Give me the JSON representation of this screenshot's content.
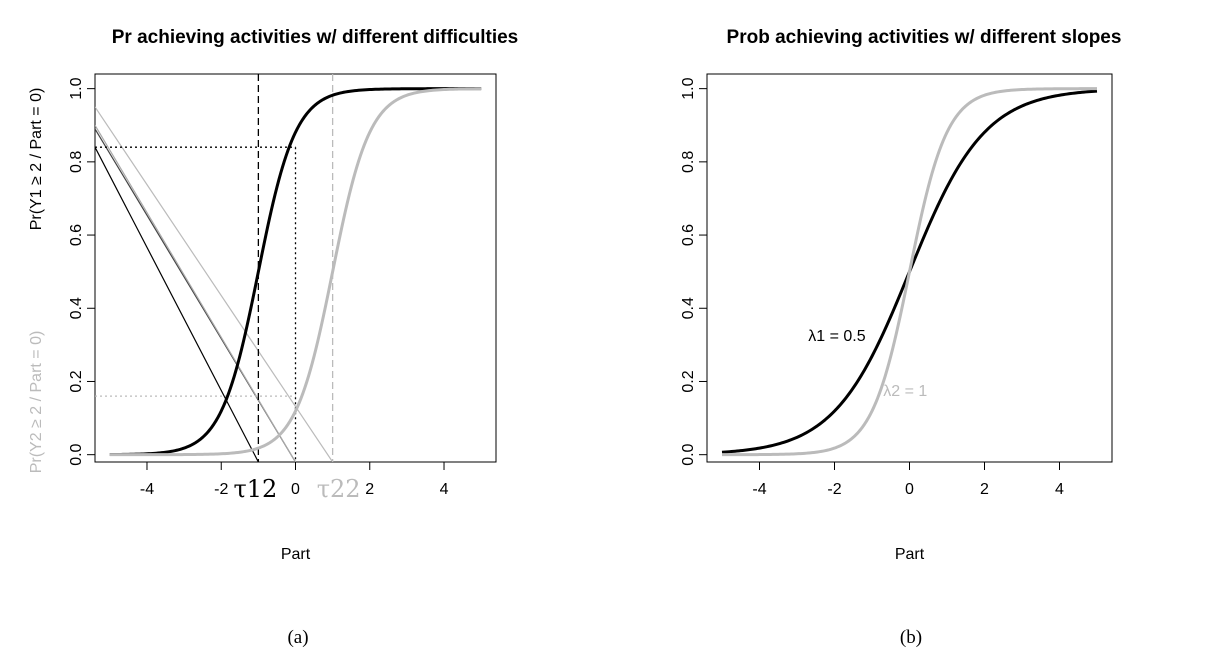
{
  "chart_data": [
    {
      "type": "line",
      "title": "Pr achieving activities w/ different difficulties",
      "xlabel": "Part",
      "ylabel_primary": "Pr(Y1 ≥ 2 / Part = 0)",
      "ylabel_secondary": "Pr(Y2 ≥ 2 / Part = 0)",
      "caption": "(a)",
      "xlim": [
        -5.4,
        5.4
      ],
      "ylim": [
        -0.02,
        1.04
      ],
      "xticks": [
        "-4",
        "-2",
        "0",
        "2",
        "4"
      ],
      "yticks": [
        "0.0",
        "0.2",
        "0.4",
        "0.6",
        "0.8",
        "1.0"
      ],
      "series": [
        {
          "color": "#000000",
          "function": "logistic",
          "slope": 2.0,
          "location": -1.0,
          "x_range": [
            -5,
            5
          ]
        },
        {
          "color": "#bbbbbb",
          "function": "logistic",
          "slope": 2.0,
          "location": 1.0,
          "x_range": [
            -5,
            5
          ]
        }
      ],
      "annotations": [
        {
          "text": "τ12",
          "x": -1.0,
          "color": "#000000"
        },
        {
          "text": "τ22",
          "x": 1.0,
          "color": "#bbbbbb"
        }
      ],
      "reference_lines": [
        {
          "kind": "vline",
          "x": -1.0,
          "style": "dashed",
          "color": "#000000"
        },
        {
          "kind": "vline",
          "x": 1.0,
          "style": "dashed",
          "color": "#bbbbbb"
        },
        {
          "kind": "vline",
          "x": 0.0,
          "style": "dotted",
          "color": "#000000",
          "to_y": 0.84
        },
        {
          "kind": "hline",
          "y": 0.84,
          "style": "dotted",
          "color": "#000000"
        },
        {
          "kind": "hline",
          "y": 0.16,
          "style": "dotted",
          "color": "#bbbbbb"
        }
      ],
      "guide_lines": [
        {
          "from": [
            -5.4,
            0.84
          ],
          "to": [
            -1.0,
            -0.02
          ],
          "color": "#000000"
        },
        {
          "from": [
            -5.4,
            0.89
          ],
          "to": [
            0.0,
            -0.02
          ],
          "color": "#444444"
        },
        {
          "from": [
            -5.4,
            0.9
          ],
          "to": [
            0.0,
            -0.02
          ],
          "color": "#aaaaaa"
        },
        {
          "from": [
            -5.4,
            0.95
          ],
          "to": [
            1.0,
            -0.02
          ],
          "color": "#bbbbbb"
        }
      ]
    },
    {
      "type": "line",
      "title": "Prob achieving activities w/ different slopes",
      "xlabel": "Part",
      "caption": "(b)",
      "xlim": [
        -5.4,
        5.4
      ],
      "ylim": [
        -0.02,
        1.04
      ],
      "xticks": [
        "-4",
        "-2",
        "0",
        "2",
        "4"
      ],
      "yticks": [
        "0.0",
        "0.2",
        "0.4",
        "0.6",
        "0.8",
        "1.0"
      ],
      "series": [
        {
          "color": "#000000",
          "function": "logistic",
          "slope": 1.0,
          "location": 0.0,
          "x_range": [
            -5,
            5
          ]
        },
        {
          "color": "#bbbbbb",
          "function": "logistic",
          "slope": 2.0,
          "location": 0.0,
          "x_range": [
            -5,
            5
          ]
        }
      ],
      "annotations": [
        {
          "text": "λ1 = 0.5",
          "x": -2.7,
          "y": 0.31,
          "color": "#000000"
        },
        {
          "text": "λ2 = 1",
          "x": -0.7,
          "y": 0.16,
          "color": "#bbbbbb"
        }
      ]
    }
  ]
}
